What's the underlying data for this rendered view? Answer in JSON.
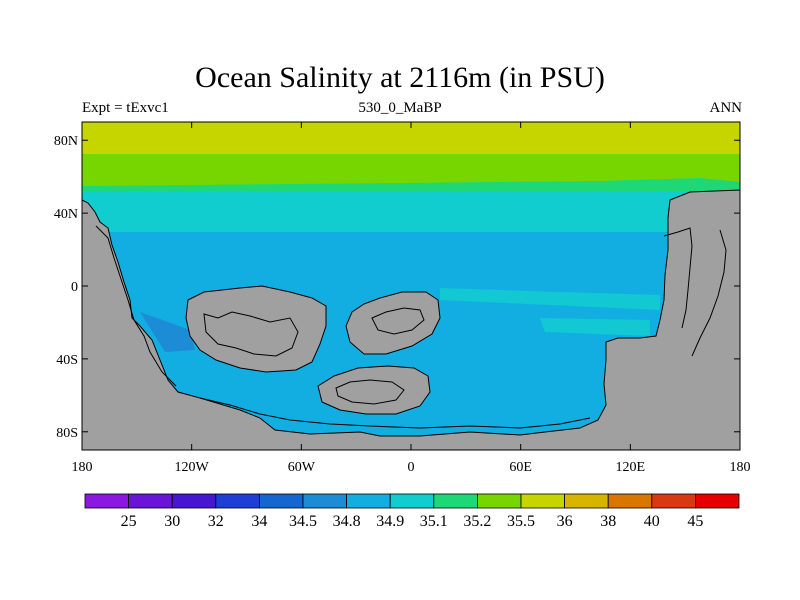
{
  "title": "Ocean Salinity at 2116m (in PSU)",
  "subtitle_left": "Expt = tExvc1",
  "subtitle_center": "530_0_MaBP",
  "subtitle_right": "ANN",
  "x_ticks": [
    "180",
    "120W",
    "60W",
    "0",
    "60E",
    "120E",
    "180"
  ],
  "x_tick_values": [
    -180,
    -120,
    -60,
    0,
    60,
    120,
    180
  ],
  "y_ticks": [
    "80N",
    "40N",
    "0",
    "40S",
    "80S"
  ],
  "y_tick_values": [
    80,
    40,
    0,
    -40,
    -80
  ],
  "lon_range": [
    -180,
    180
  ],
  "lat_range": [
    -90,
    90
  ],
  "colors": {
    "land": "#a0a0a0",
    "coast": "#000000"
  },
  "colorbar": {
    "labels": [
      "25",
      "30",
      "32",
      "34",
      "34.5",
      "34.8",
      "34.9",
      "35.1",
      "35.2",
      "35.5",
      "36",
      "38",
      "40",
      "45"
    ],
    "colors": [
      "#8b17e0",
      "#6a14d8",
      "#4716d0",
      "#1d3fd6",
      "#1566d0",
      "#1c8cd6",
      "#12aee2",
      "#12cdd0",
      "#1ed878",
      "#78d600",
      "#c6d400",
      "#d8b400",
      "#da7600",
      "#d93810",
      "#e60000"
    ]
  }
}
